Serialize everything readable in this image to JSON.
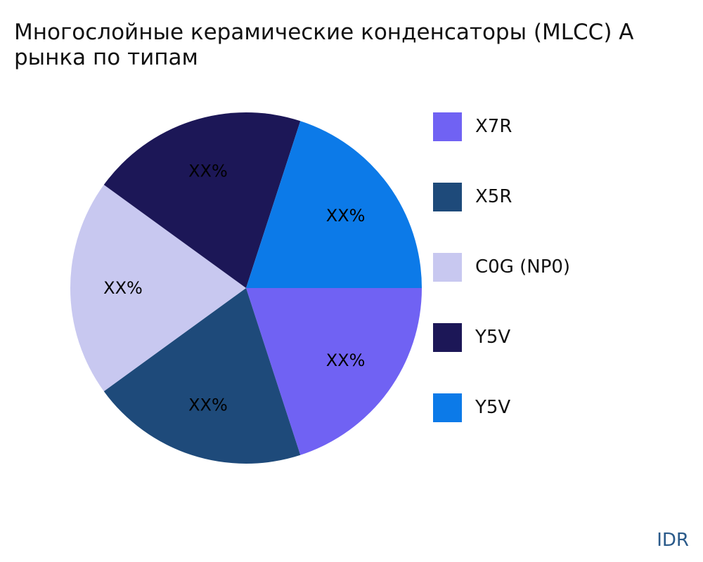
{
  "chart_data": {
    "type": "pie",
    "title_lines": [
      "Многослойные керамические конденсаторы (MLCC) А",
      "рынка по типам"
    ],
    "slices": [
      {
        "name": "X7R",
        "value": 20,
        "label": "XX%",
        "color": "#7062f3"
      },
      {
        "name": "X5R",
        "value": 20,
        "label": "XX%",
        "color": "#1e4a7a"
      },
      {
        "name": "C0G (NP0)",
        "value": 20,
        "label": "XX%",
        "color": "#c8c8f0"
      },
      {
        "name": "Y5V",
        "value": 20,
        "label": "XX%",
        "color": "#1c1757"
      },
      {
        "name": "Y5V",
        "value": 20,
        "label": "XX%",
        "color": "#0c7ae8"
      }
    ],
    "legend_position": "right"
  },
  "brand": "IDR"
}
